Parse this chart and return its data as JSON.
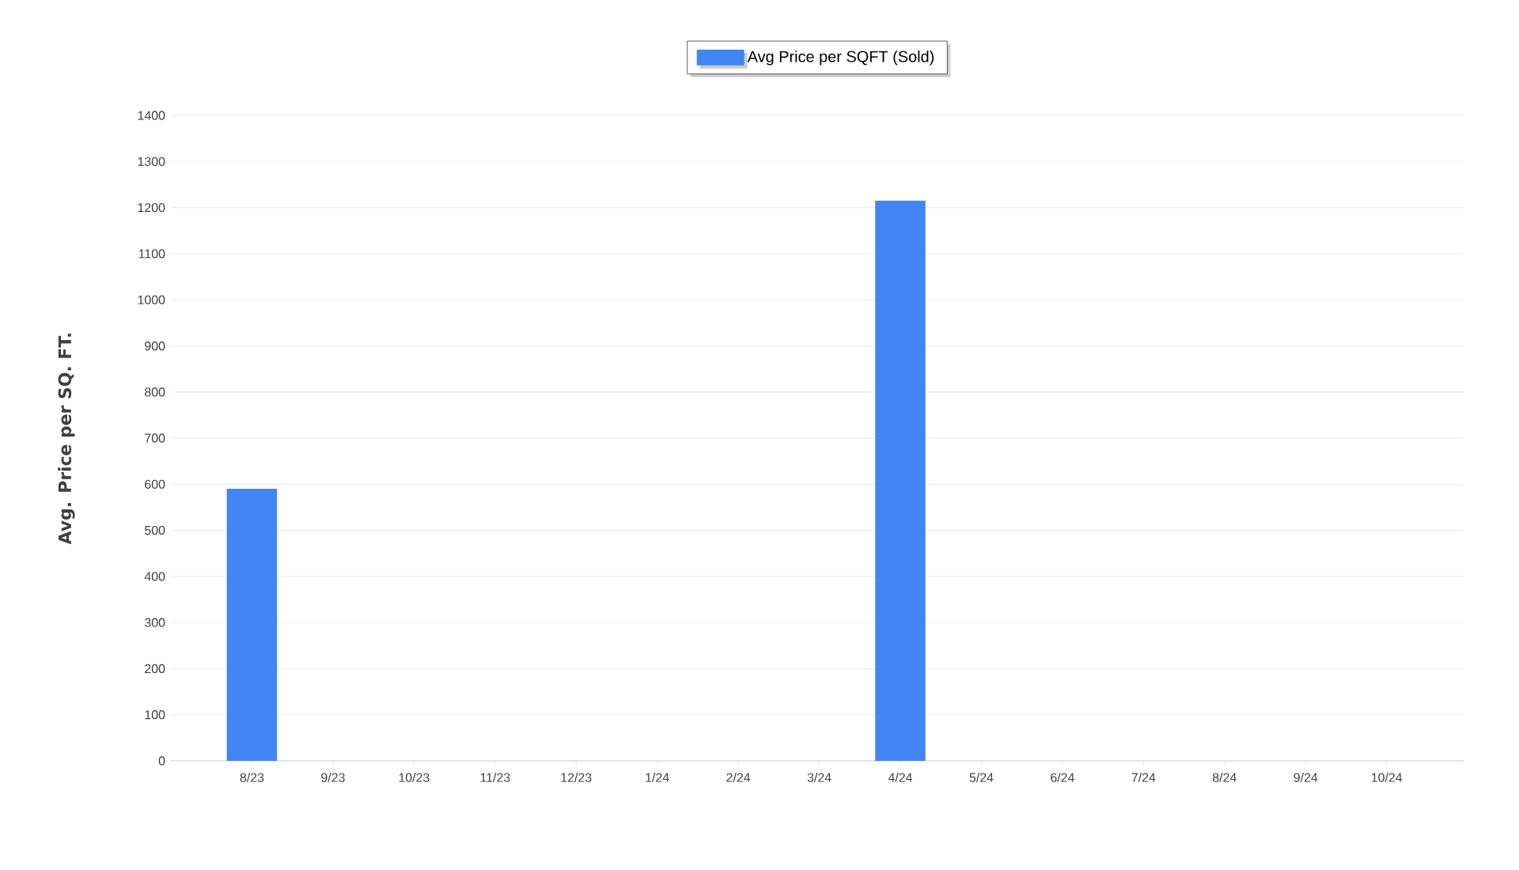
{
  "chart_data": {
    "type": "bar",
    "ylabel": "Avg. Price per SQ. FT.",
    "categories": [
      "8/23",
      "9/23",
      "10/23",
      "11/23",
      "12/23",
      "1/24",
      "2/24",
      "3/24",
      "4/24",
      "5/24",
      "6/24",
      "7/24",
      "8/24",
      "9/24",
      "10/24"
    ],
    "series": [
      {
        "name": "Avg Price per SQFT (Sold)",
        "color": "#4285f4",
        "values": [
          590,
          0,
          0,
          0,
          0,
          0,
          0,
          0,
          1215,
          0,
          0,
          0,
          0,
          0,
          0
        ]
      }
    ],
    "ylim": [
      0,
      1400
    ],
    "yticks": [
      0,
      100,
      200,
      300,
      400,
      500,
      600,
      700,
      800,
      900,
      1000,
      1100,
      1200,
      1300,
      1400
    ],
    "grid": "y",
    "legend": "top"
  }
}
